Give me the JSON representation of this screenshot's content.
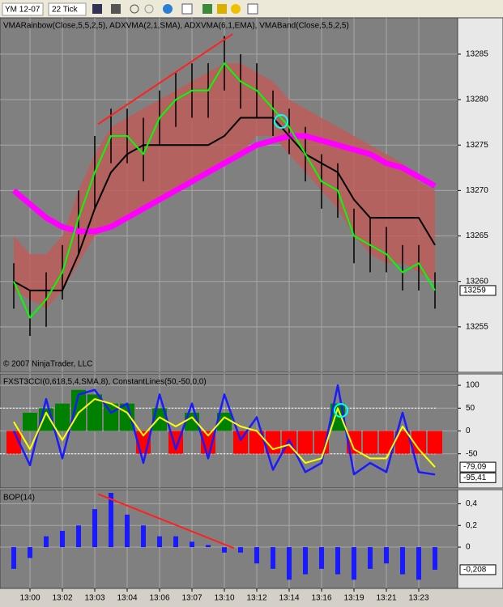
{
  "toolbar": {
    "instrument": "YM 12-07",
    "interval": "22 Tick"
  },
  "chart_data": [
    {
      "type": "line",
      "title": "VMARainbow(Close,5,5,2,5), ADXVMA(2,1,SMA), ADXVMA(6,1,EMA), VMABand(Close,5,5,2,5)",
      "annotation": "© 2007 NinjaTrader, LLC",
      "ylim": [
        13250,
        13289
      ],
      "yticks": [
        13255,
        13260,
        13265,
        13270,
        13275,
        13280,
        13285
      ],
      "grid": true,
      "band": {
        "color": "#c05a58",
        "upper": [
          13265,
          13263,
          13263,
          13265,
          13270,
          13274,
          13277,
          13278,
          13279,
          13280,
          13281,
          13282,
          13283,
          13284,
          13284,
          13283,
          13282,
          13280,
          13279,
          13278,
          13277,
          13276,
          13275,
          13274,
          13273,
          13271,
          13270
        ],
        "lower": [
          13259,
          13258,
          13257,
          13259,
          13262,
          13265,
          13266,
          13267,
          13268,
          13269,
          13270,
          13271,
          13272,
          13273,
          13274,
          13276,
          13276,
          13274,
          13272,
          13270,
          13268,
          13265,
          13263,
          13262,
          13262,
          13261,
          13260
        ]
      },
      "bars": {
        "color": "#000000",
        "high": [
          13262,
          13259,
          13261,
          13264,
          13270,
          13276,
          13279,
          13279,
          13278,
          13281,
          13283,
          13284,
          13284,
          13287,
          13285,
          13284,
          13281,
          13279,
          13277,
          13274,
          13273,
          13268,
          13267,
          13266,
          13264,
          13264,
          13261
        ],
        "low": [
          13257,
          13254,
          13255,
          13258,
          13263,
          13268,
          13273,
          13273,
          13271,
          13275,
          13277,
          13278,
          13278,
          13281,
          13279,
          13278,
          13276,
          13274,
          13271,
          13268,
          13267,
          13262,
          13261,
          13261,
          13259,
          13259,
          13257
        ]
      },
      "series": [
        {
          "color": "#ff00ff",
          "values": [
            13270,
            13268.5,
            13267,
            13266,
            13265.5,
            13265.5,
            13266,
            13267,
            13268,
            13269,
            13270,
            13271,
            13272,
            13273,
            13274,
            13275,
            13275.5,
            13276,
            13276,
            13275.5,
            13275,
            13274.5,
            13274,
            13273,
            13272.5,
            13271.5,
            13270.5
          ]
        },
        {
          "color": "#000000",
          "values": [
            13260,
            13259,
            13259,
            13259,
            13263,
            13268,
            13272,
            13274,
            13275,
            13275,
            13275,
            13275,
            13275,
            13276,
            13278,
            13278,
            13278,
            13276,
            13274,
            13273,
            13272,
            13269,
            13267,
            13267,
            13267,
            13267,
            13264
          ]
        },
        {
          "color": "#00ff00",
          "values": [
            13260,
            13256,
            13258,
            13261,
            13267,
            13272,
            13276,
            13276,
            13274,
            13278,
            13280,
            13281,
            13281,
            13284,
            13282,
            13281,
            13279,
            13277,
            13274,
            13271,
            13270,
            13265,
            13264,
            13263,
            13261,
            13262,
            13259
          ]
        }
      ],
      "trendline": {
        "color": "#ff2020",
        "x": [
          5.2,
          13.5
        ],
        "y": [
          13277.3,
          13287.2
        ]
      },
      "marker": {
        "color": "#00ffff",
        "x": 16.5,
        "y": 13277.6
      },
      "last_labels": [
        13259
      ]
    },
    {
      "type": "combo",
      "title": "FXST3CCI(0,618,5,4,SMA,8), ConstantLines(50,-50,0,0)",
      "ylim": [
        -125,
        125
      ],
      "yticks": [
        100,
        50,
        0,
        -50
      ],
      "grid": true,
      "constant_lines": [
        50,
        -50
      ],
      "histogram": {
        "up": "#008000",
        "down": "#ff0000",
        "values": [
          -50,
          40,
          50,
          60,
          90,
          80,
          60,
          60,
          -50,
          50,
          -50,
          40,
          -50,
          40,
          -50,
          -50,
          -50,
          -50,
          -50,
          -50,
          60,
          -50,
          -50,
          -50,
          -50,
          -50,
          -50
        ]
      },
      "series": [
        {
          "color": "#1a1aff",
          "values": [
            0,
            -75,
            70,
            -60,
            80,
            90,
            40,
            60,
            -70,
            80,
            -40,
            60,
            -60,
            80,
            -20,
            30,
            -85,
            -20,
            -90,
            -70,
            100,
            -95,
            -70,
            -90,
            40,
            -90,
            -95.41
          ]
        },
        {
          "color": "#ffff00",
          "values": [
            20,
            -40,
            40,
            -20,
            40,
            70,
            60,
            40,
            -10,
            30,
            10,
            30,
            -10,
            30,
            10,
            0,
            -40,
            -30,
            -70,
            -60,
            50,
            -40,
            -60,
            -60,
            10,
            -40,
            -79.09
          ]
        }
      ],
      "marker": {
        "color": "#00ffff",
        "x": 20.2,
        "y": 45
      },
      "last_labels": [
        {
          "value": -79.09,
          "label": "-79,09"
        },
        {
          "value": -95.41,
          "label": "-95,41"
        }
      ]
    },
    {
      "type": "bar",
      "title": "BOP(14)",
      "ylim": [
        -0.38,
        0.53
      ],
      "yticks": [
        {
          "value": 0.4,
          "label": "0,4"
        },
        {
          "value": 0.2,
          "label": "0,2"
        },
        0
      ],
      "grid": true,
      "color": "#1a1aff",
      "values": [
        -0.2,
        -0.1,
        0.1,
        0.15,
        0.2,
        0.35,
        0.5,
        0.3,
        0.2,
        0.1,
        0.1,
        0.05,
        0.02,
        -0.05,
        -0.05,
        -0.15,
        -0.2,
        -0.3,
        -0.25,
        -0.2,
        -0.25,
        -0.3,
        -0.2,
        -0.15,
        -0.25,
        -0.3,
        -0.208
      ],
      "trendline": {
        "color": "#ff2020",
        "x": [
          5.2,
          13.6
        ],
        "y": [
          0.49,
          -0.01
        ]
      },
      "last_labels": [
        {
          "value": -0.208,
          "label": "-0,208"
        }
      ],
      "categories": [
        null,
        "13:00",
        null,
        "13:02",
        null,
        "13:03",
        null,
        "13:04",
        null,
        "13:06",
        null,
        "13:07",
        null,
        "13:10",
        null,
        "13:12",
        null,
        "13:14",
        null,
        "13:16",
        null,
        "13:19",
        null,
        "13:21",
        null,
        "13:23",
        null
      ]
    }
  ]
}
